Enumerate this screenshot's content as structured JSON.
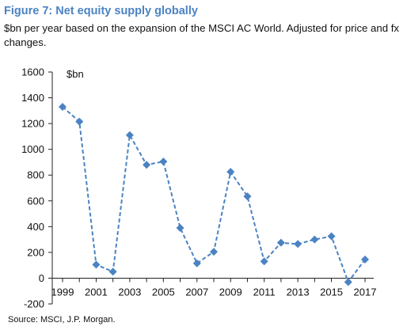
{
  "figure": {
    "title": "Figure 7: Net equity supply globally",
    "subtitle": "$bn per year based on the expansion of the MSCI AC World. Adjusted for price and fx changes.",
    "source": "Source: MSCI, J.P. Morgan."
  },
  "chart_data": {
    "type": "line",
    "unit_label": "$bn",
    "x": [
      1999,
      2000,
      2001,
      2002,
      2003,
      2004,
      2005,
      2006,
      2007,
      2008,
      2009,
      2010,
      2011,
      2012,
      2013,
      2014,
      2015,
      2016,
      2017
    ],
    "series": [
      {
        "values": [
          1330,
          1215,
          105,
          50,
          1110,
          880,
          905,
          390,
          115,
          205,
          825,
          635,
          130,
          275,
          265,
          300,
          325,
          -30,
          145
        ]
      }
    ],
    "ylim": [
      -200,
      1600
    ],
    "yticks": [
      -200,
      0,
      200,
      400,
      600,
      800,
      1000,
      1200,
      1400,
      1600
    ],
    "xtick_labels": [
      "1999",
      "2001",
      "2003",
      "2005",
      "2007",
      "2009",
      "2011",
      "2013",
      "2015",
      "2017"
    ],
    "line_style": "dashed",
    "marker": "diamond",
    "color": "#4a83c3",
    "grid": false,
    "legend": "none"
  }
}
